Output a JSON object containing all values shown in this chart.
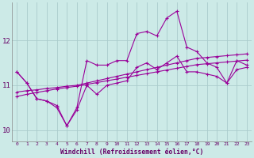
{
  "background_color": "#cceae7",
  "line_color": "#990099",
  "grid_color": "#aacccc",
  "xlabel": "Windchill (Refroidissement éolien,°C)",
  "xlabel_color": "#660066",
  "tick_color": "#660066",
  "xlim": [
    -0.5,
    23.5
  ],
  "ylim": [
    9.75,
    12.85
  ],
  "yticks": [
    10,
    11,
    12
  ],
  "xticks": [
    0,
    1,
    2,
    3,
    4,
    5,
    6,
    7,
    8,
    9,
    10,
    11,
    12,
    13,
    14,
    15,
    16,
    17,
    18,
    19,
    20,
    21,
    22,
    23
  ],
  "series": [
    [
      11.3,
      11.05,
      10.7,
      10.65,
      10.55,
      10.1,
      10.5,
      11.55,
      11.45,
      11.45,
      11.55,
      11.55,
      12.15,
      12.2,
      12.1,
      12.5,
      12.65,
      11.85,
      11.75,
      11.5,
      11.4,
      11.05,
      11.55,
      11.45
    ],
    [
      11.3,
      11.05,
      10.7,
      10.65,
      10.5,
      10.1,
      10.45,
      11.0,
      10.8,
      11.0,
      11.05,
      11.1,
      11.4,
      11.5,
      11.35,
      11.5,
      11.65,
      11.3,
      11.3,
      11.25,
      11.2,
      11.05,
      11.35,
      11.4
    ],
    [
      10.85,
      10.88,
      10.9,
      10.93,
      10.95,
      10.98,
      11.0,
      11.05,
      11.1,
      11.15,
      11.2,
      11.25,
      11.3,
      11.35,
      11.4,
      11.45,
      11.5,
      11.55,
      11.6,
      11.62,
      11.64,
      11.66,
      11.68,
      11.7
    ],
    [
      10.75,
      10.8,
      10.84,
      10.88,
      10.92,
      10.95,
      10.98,
      11.02,
      11.06,
      11.1,
      11.14,
      11.18,
      11.22,
      11.26,
      11.3,
      11.34,
      11.38,
      11.42,
      11.46,
      11.48,
      11.5,
      11.52,
      11.54,
      11.56
    ]
  ]
}
